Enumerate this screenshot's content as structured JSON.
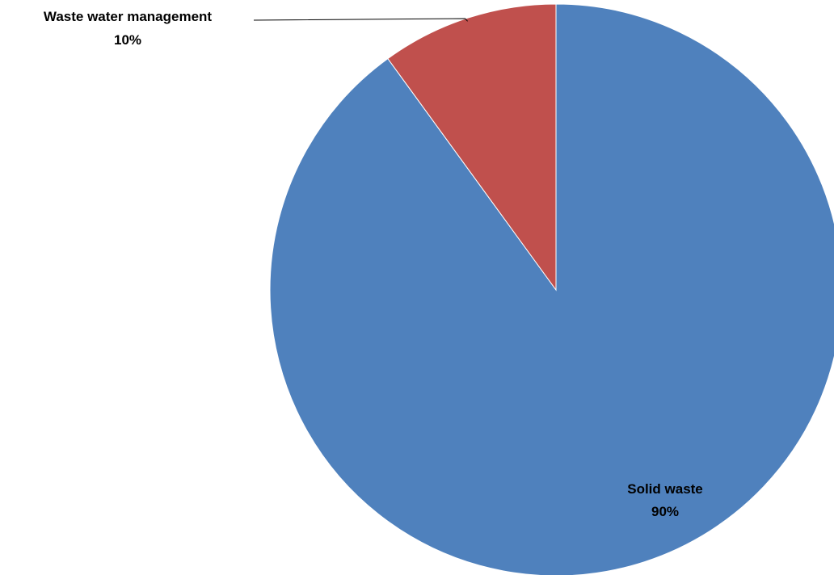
{
  "chart_data": {
    "type": "pie",
    "title": "",
    "start_angle_deg": 0,
    "direction": "clockwise",
    "legend": "none",
    "slices": [
      {
        "name": "Solid waste",
        "value": 90,
        "percent_label": "90%",
        "color": "#4F81BD"
      },
      {
        "name": "Waste water management",
        "value": 10,
        "percent_label": "10%",
        "color": "#C0504D"
      }
    ]
  }
}
